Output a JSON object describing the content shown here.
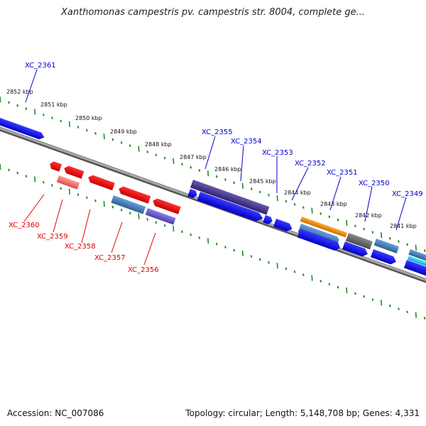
{
  "title": "Xanthomonas campestris pv. campestris str. 8004, complete ge...",
  "accession": "Accession: NC_007086",
  "topology": "Topology: circular; Length: 5,148,708 bp; Genes: 4,331",
  "colors": {
    "plus_label": "#0000cc",
    "minus_label": "#dd0000",
    "backbone": "#808080",
    "tick": "#228b22"
  },
  "kbp_labels": [
    "2852 kbp",
    "2851 kbp",
    "2850 kbp",
    "2849 kbp",
    "2848 kbp",
    "2847 kbp",
    "2846 kbp",
    "2845 kbp",
    "2844 kbp",
    "2843 kbp",
    "2842 kbp",
    "2841 kbp"
  ],
  "gene_labels_plus": [
    "XC_2361",
    "XC_2355",
    "XC_2354",
    "XC_2353",
    "XC_2352",
    "XC_2351",
    "XC_2350",
    "XC_2349"
  ],
  "gene_labels_minus": [
    "XC_2360",
    "XC_2359",
    "XC_2358",
    "XC_2357",
    "XC_2356"
  ]
}
